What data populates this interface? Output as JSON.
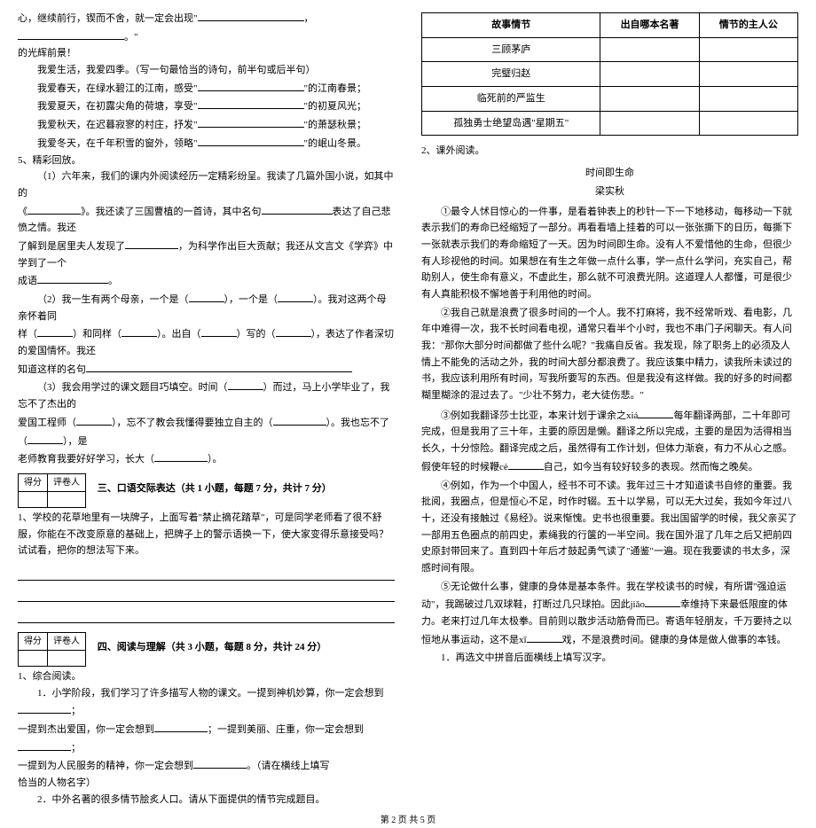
{
  "left": {
    "l1": "心，继续前行，锲而不舍，就一定会出现\"",
    "l1b": "，",
    "l1c": "。\"",
    "l2": "的光辉前景！",
    "p1": "我爱生活，我爱四季。（写一句最恰当的诗句，前半句或后半句）",
    "p2a": "我爱春天，在绿水碧江的江南，感受\"",
    "p2b": "\"的江南春景；",
    "p3a": "我爱夏天，在初露尖角的荷塘，享受\"",
    "p3b": "\"的初夏风光；",
    "p4a": "我爱秋天，在迟暮寂寥的村庄，抒发\"",
    "p4b": "\"的萧瑟秋景；",
    "p5a": "我爱冬天，在千年积雪的窗外，领略\"",
    "p5b": "\"的岷山冬景。",
    "h5": "5、精彩回放。",
    "q1a": "（1）六年来，我们的课内外阅读经历一定精彩纷呈。我读了几篇外国小说，如其中的",
    "q1b": "《",
    "q1c": "》。我还读了三国曹植的一首诗，其中名句",
    "q1d": "表达了自己悲愤之情。我还",
    "q1e": "了解到是居里夫人发现了",
    "q1f": "，为科学作出巨大贡献；我还从文言文《学弈》中学到了一个",
    "q1g": "成语",
    "q1h": "。",
    "q2a": "（2）我一生有两个母亲，一个是（",
    "q2b": "），一个是（",
    "q2c": "）。我对这两个母亲怀着同",
    "q2d": "样（",
    "q2e": "）和同样（",
    "q2f": "）。出自（",
    "q2g": "）写的（",
    "q2h": "），表达了作者深切的爱国情怀。我还",
    "q2i": "知道这样的名句",
    "q3a": "（3）我会用学过的课文题目巧填空。时间（",
    "q3b": "）而过，马上小学毕业了，我忘不了杰出的",
    "q3c": "爱国工程师（",
    "q3d": "），忘不了教会我懂得要独立自主的（",
    "q3e": "）。我也忘不了（",
    "q3f": "），是",
    "q3g": "老师教育我要好好学习，长大（",
    "q3h": "）。",
    "score_a": "得分",
    "score_b": "评卷人",
    "sec3": "三、口语交际表达（共 1 小题，每题 7 分，共计 7 分）",
    "s3q": "1、学校的花草地里有一块牌子，上面写着\"禁止摘花踏草\"，可是同学老师看了很不舒服，你能在不改变原意的基础上，把牌子上的警示语换一下，使大家变得乐意接受吗？试试看，把你的想法写下来。",
    "sec4": "四、阅读与理解（共 3 小题，每题 8 分，共计 24 分）",
    "s4h1": "1、综合阅读。",
    "s4p1a": "1．小学阶段，我们学习了许多描写人物的课文。一提到神机妙算，你一定会想到",
    "s4p1b": "；",
    "s4p2a": "一提到杰出爱国，你一定会想到",
    "s4p2b": "；一提到美丽、庄重，你一定会想到",
    "s4p2c": "；",
    "s4p3a": "一提到为人民服务的精神，你一定会想到",
    "s4p3b": "。（请在横线上填写",
    "s4p4": "恰当的人物名字）",
    "s4h2": "2．中外名著的很多情节脍炙人口。请从下面提供的情节完成题目。"
  },
  "right": {
    "tbl": {
      "h1": "故事情节",
      "h2": "出自哪本名著",
      "h3": "情节的主人公",
      "r1": "三顾茅庐",
      "r2": "完璧归赵",
      "r3": "临死前的严监生",
      "r4": "孤独勇士绝望岛遇\"星期五\""
    },
    "h2": "2、课外阅读。",
    "title": "时间即生命",
    "author": "梁实秋",
    "p1": "①最令人怵目惊心的一件事，是看着钟表上的秒针一下一下地移动，每移动一下就表示我们的寿命已经缩短了一部分。再看看墙上挂着的可以一张张撕下的日历，每撕下一张就表示我们的寿命缩短了一天。因为时间即生命。没有人不爱惜他的生命，但很少有人珍视他的时间。如果想在有生之年做一点什么事，学一点什么学问，充实自己，帮助别人，使生命有意义，不虚此生，那么就不可浪费光阴。这道理人人都懂，可是很少有人真能积极不懈地善于利用他的时间。",
    "p2a": "②我自己就是浪费了很多时间的一个人。我不打麻将，我不经常听戏、看电影，几年中难得一次，我不长时间看电视，通常只看半个小时，我也不串门子闲聊天。有人问我：\"那你大部分时间都做了些什么呢？\"我痛自反省。我发现，除了职务上的必须及人情上不能免的活动之外，我的时间大部分都浪费了。我应该集中精力，读我所未读过的书，我应该利用所有时间，写我所要写的东西。但是我没有这样做。我的好多的时间都糊里糊涂的混过去了。\"少壮不努力，老大徒伤悲。\"",
    "p3a": "③例如我翻译莎士比亚，本来计划于课余之xiá",
    "p3b": "每年翻译两部，二十年即可完成，但是我用了三十年，主要的原因是懒。翻译之所以完成，主要的是因为活得相当长久，十分惊险。翻译完成之后，虽然得有工作计划，但体力渐衰，有力不从心之感。假使年轻的时候鞭cè",
    "p3c": "自己，如今当有较好较多的表现。然而悔之晚矣。",
    "p4": "④例如，作为一个中国人，经书不可不读。我年过三十才知道读书自修的重要。我批阅，我圈点，但是恒心不足，时作时辍。五十以学易，可以无大过矣，我如今年过八十，还没有接触过《易经》。说来惭愧。史书也很重要。我出国留学的时候，我父亲买了一部用五色圈点的前四史，素绳我的行箧的一半空间。我在国外混了几年之后又把前四史原封带回来了。直到四十年后才鼓起勇气读了\"通鉴\"一遍。现在我要读的书太多，深感时间有限。",
    "p5a": "⑤无论做什么事，健康的身体是基本条件。我在学校读书的时候，有所谓\"强迫运动\"，我踢破过几双球鞋，打断过几只球拍。因此jiǎo",
    "p5b": "幸维持下来最低限度的体力。老来打过几年太极拳。目前则以散步活动筋骨而已。寄语年轻朋友，千万要持之以恒地从事运动，这不是xī",
    "p5c": "戏，不是浪费时间。健康的身体是做人做事的本钱。",
    "q1": "1．再选文中拼音后面横线上填写汉字。"
  },
  "footer": "第 2 页 共 5 页"
}
